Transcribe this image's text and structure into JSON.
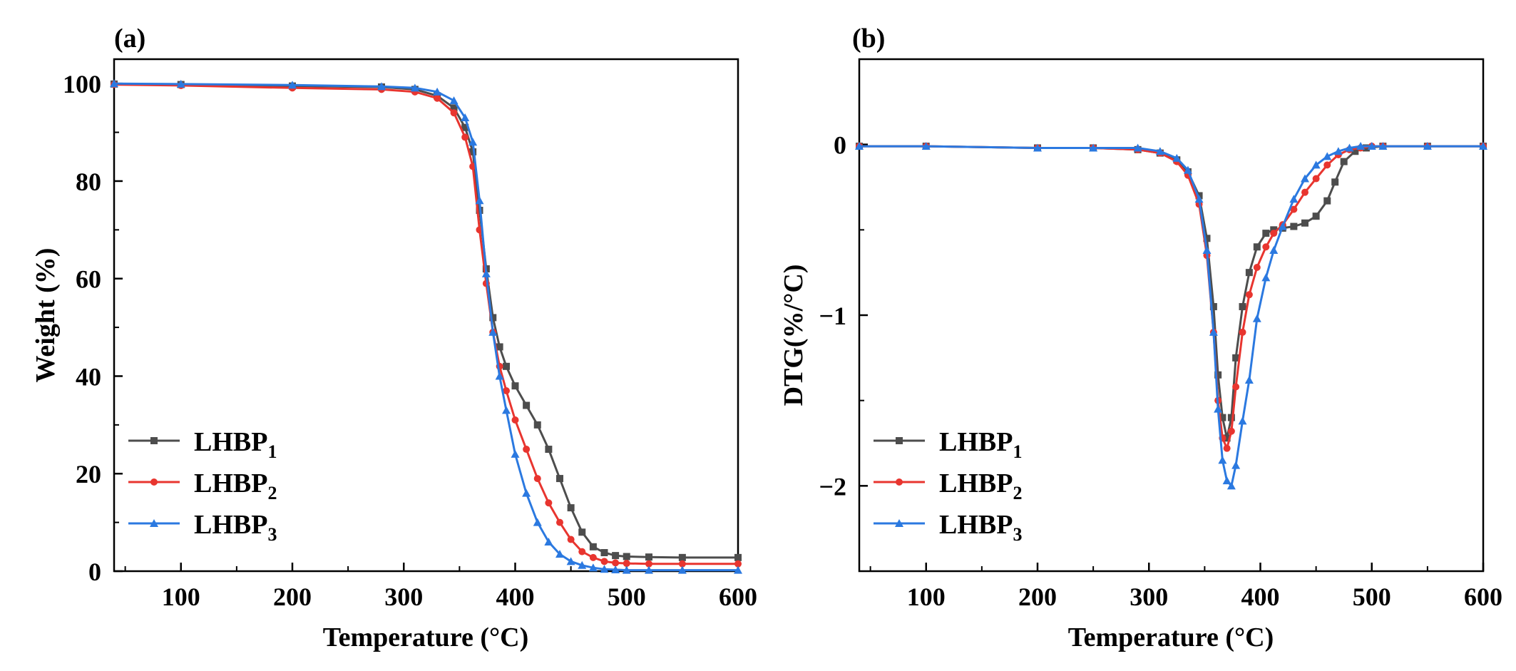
{
  "chart_data": [
    {
      "panel": "(a)",
      "type": "line",
      "title": "",
      "xlabel": "Temperature (°C)",
      "ylabel": "Weight (%)",
      "xlim": [
        40,
        600
      ],
      "ylim": [
        0,
        105
      ],
      "xticks": [
        100,
        200,
        300,
        400,
        500,
        600
      ],
      "yticks": [
        0,
        20,
        40,
        60,
        80,
        100
      ],
      "grid": false,
      "legend_position": "bottom-left",
      "series": [
        {
          "name": "LHBP",
          "subscript": "1",
          "color": "#4d4d4d",
          "marker": "square",
          "x": [
            40,
            100,
            200,
            280,
            310,
            330,
            345,
            355,
            362,
            368,
            374,
            380,
            386,
            392,
            400,
            410,
            420,
            430,
            440,
            450,
            460,
            470,
            480,
            490,
            500,
            520,
            550,
            600
          ],
          "y": [
            99.9,
            99.8,
            99.5,
            99.3,
            98.8,
            97.5,
            95,
            91,
            86,
            74,
            62,
            52,
            46,
            42,
            38,
            34,
            30,
            25,
            19,
            13,
            8,
            5,
            3.8,
            3.2,
            3,
            2.9,
            2.8,
            2.8
          ]
        },
        {
          "name": "LHBP",
          "subscript": "2",
          "color": "#e8352f",
          "marker": "circle",
          "x": [
            40,
            100,
            200,
            280,
            310,
            330,
            345,
            355,
            362,
            368,
            374,
            380,
            386,
            392,
            400,
            410,
            420,
            430,
            440,
            450,
            460,
            470,
            480,
            490,
            500,
            520,
            550,
            600
          ],
          "y": [
            99.8,
            99.6,
            99.1,
            98.8,
            98.3,
            97,
            94,
            89,
            83,
            70,
            59,
            49,
            42,
            37,
            31,
            25,
            19,
            14,
            10,
            6.5,
            4,
            2.8,
            2,
            1.7,
            1.6,
            1.5,
            1.5,
            1.5
          ]
        },
        {
          "name": "LHBP",
          "subscript": "3",
          "color": "#2b79e0",
          "marker": "triangle",
          "x": [
            40,
            100,
            200,
            280,
            310,
            330,
            345,
            355,
            362,
            368,
            374,
            380,
            386,
            392,
            400,
            410,
            420,
            430,
            440,
            450,
            460,
            470,
            480,
            490,
            500,
            520,
            550,
            600
          ],
          "y": [
            100,
            99.9,
            99.7,
            99.4,
            99.1,
            98.3,
            96.5,
            93,
            88,
            76,
            61,
            49,
            40,
            33,
            24,
            16,
            10,
            6,
            3.5,
            2,
            1.2,
            0.7,
            0.4,
            0.3,
            0.2,
            0.2,
            0.2,
            0.2
          ]
        }
      ]
    },
    {
      "panel": "(b)",
      "type": "line",
      "title": "",
      "xlabel": "Temperature (°C)",
      "ylabel": "DTG(%/°C)",
      "xlim": [
        40,
        600
      ],
      "ylim": [
        -2.5,
        0.5
      ],
      "xticks": [
        100,
        200,
        300,
        400,
        500,
        600
      ],
      "yticks": [
        0,
        -1,
        -2
      ],
      "ytick_labels": [
        "0",
        "−1",
        "−2"
      ],
      "grid": false,
      "legend_position": "bottom-left",
      "series": [
        {
          "name": "LHBP",
          "subscript": "1",
          "color": "#4d4d4d",
          "marker": "square",
          "x": [
            40,
            100,
            200,
            250,
            290,
            310,
            325,
            335,
            345,
            352,
            358,
            362,
            366,
            370,
            374,
            378,
            384,
            390,
            397,
            405,
            412,
            420,
            430,
            440,
            450,
            460,
            467,
            475,
            485,
            495,
            510,
            550,
            600
          ],
          "y": [
            -0.01,
            -0.01,
            -0.02,
            -0.02,
            -0.03,
            -0.05,
            -0.09,
            -0.16,
            -0.3,
            -0.55,
            -0.95,
            -1.35,
            -1.6,
            -1.72,
            -1.6,
            -1.25,
            -0.95,
            -0.75,
            -0.6,
            -0.52,
            -0.5,
            -0.49,
            -0.48,
            -0.46,
            -0.42,
            -0.33,
            -0.22,
            -0.1,
            -0.04,
            -0.02,
            -0.01,
            -0.01,
            -0.01
          ]
        },
        {
          "name": "LHBP",
          "subscript": "2",
          "color": "#e8352f",
          "marker": "circle",
          "x": [
            40,
            100,
            200,
            250,
            290,
            310,
            325,
            335,
            345,
            352,
            358,
            362,
            366,
            370,
            374,
            378,
            384,
            390,
            397,
            405,
            412,
            420,
            430,
            440,
            450,
            460,
            470,
            480,
            490,
            500,
            510,
            550,
            600
          ],
          "y": [
            -0.01,
            -0.01,
            -0.02,
            -0.02,
            -0.03,
            -0.05,
            -0.1,
            -0.18,
            -0.35,
            -0.65,
            -1.1,
            -1.5,
            -1.72,
            -1.78,
            -1.68,
            -1.42,
            -1.1,
            -0.88,
            -0.72,
            -0.6,
            -0.52,
            -0.47,
            -0.38,
            -0.28,
            -0.2,
            -0.12,
            -0.06,
            -0.03,
            -0.02,
            -0.01,
            -0.01,
            -0.01,
            -0.01
          ]
        },
        {
          "name": "LHBP",
          "subscript": "3",
          "color": "#2b79e0",
          "marker": "triangle",
          "x": [
            40,
            100,
            200,
            250,
            290,
            310,
            325,
            335,
            345,
            352,
            358,
            362,
            366,
            370,
            374,
            378,
            384,
            390,
            397,
            405,
            412,
            420,
            430,
            440,
            450,
            460,
            470,
            480,
            490,
            500,
            510,
            550,
            600
          ],
          "y": [
            -0.01,
            -0.01,
            -0.02,
            -0.02,
            -0.02,
            -0.04,
            -0.08,
            -0.15,
            -0.32,
            -0.62,
            -1.1,
            -1.55,
            -1.85,
            -1.97,
            -2.0,
            -1.88,
            -1.62,
            -1.38,
            -1.02,
            -0.78,
            -0.62,
            -0.48,
            -0.32,
            -0.2,
            -0.12,
            -0.07,
            -0.04,
            -0.02,
            -0.01,
            -0.01,
            -0.01,
            -0.01,
            -0.01
          ]
        }
      ]
    }
  ]
}
